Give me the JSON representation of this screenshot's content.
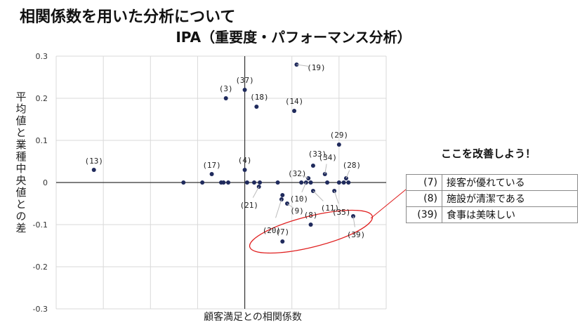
{
  "page_title": "相関係数を用いた分析について",
  "callout": {
    "heading": "ここを改善しよう！",
    "rows": [
      {
        "num": "(7)",
        "text": "接客が優れている"
      },
      {
        "num": "(8)",
        "text": "施設が清潔である"
      },
      {
        "num": "(39)",
        "text": "食事は美味しい"
      }
    ]
  },
  "chart_data": {
    "type": "scatter",
    "title": "IPA（重要度・パフォーマンス分析）",
    "xlabel": "顧客満足との相関係数",
    "ylabel": "平均値と業種中央値との差",
    "ylim": [
      -0.3,
      0.3
    ],
    "yticks": [
      "0.3",
      "0.2",
      "0.1",
      "0",
      "-0.1",
      "-0.2",
      "-0.3"
    ],
    "grid": true,
    "points": [
      {
        "label": "(13)",
        "x": 0.08,
        "y": 0.03
      },
      {
        "label": "",
        "x": 0.27,
        "y": 0.0
      },
      {
        "label": "",
        "x": 0.31,
        "y": 0.0
      },
      {
        "label": "(17)",
        "x": 0.33,
        "y": 0.02
      },
      {
        "label": "",
        "x": 0.35,
        "y": 0.0
      },
      {
        "label": "",
        "x": 0.355,
        "y": 0.0
      },
      {
        "label": "",
        "x": 0.365,
        "y": 0.0
      },
      {
        "label": "(3)",
        "x": 0.36,
        "y": 0.2
      },
      {
        "label": "(37)",
        "x": 0.4,
        "y": 0.22
      },
      {
        "label": "(4)",
        "x": 0.4,
        "y": 0.03
      },
      {
        "label": "",
        "x": 0.405,
        "y": 0.0
      },
      {
        "label": "(18)",
        "x": 0.425,
        "y": 0.18
      },
      {
        "label": "",
        "x": 0.42,
        "y": 0.0
      },
      {
        "label": "(21)",
        "x": 0.43,
        "y": -0.01
      },
      {
        "label": "",
        "x": 0.432,
        "y": 0.0
      },
      {
        "label": "",
        "x": 0.47,
        "y": 0.0
      },
      {
        "label": "(20)",
        "x": 0.478,
        "y": -0.04
      },
      {
        "label": "",
        "x": 0.48,
        "y": -0.03
      },
      {
        "label": "(9)",
        "x": 0.49,
        "y": -0.05
      },
      {
        "label": "(7)",
        "x": 0.48,
        "y": -0.14
      },
      {
        "label": "(19)",
        "x": 0.51,
        "y": 0.28
      },
      {
        "label": "(14)",
        "x": 0.505,
        "y": 0.17
      },
      {
        "label": "",
        "x": 0.52,
        "y": 0.0
      },
      {
        "label": "(10)",
        "x": 0.53,
        "y": 0.0
      },
      {
        "label": "(32)",
        "x": 0.535,
        "y": 0.01
      },
      {
        "label": "(33)",
        "x": 0.545,
        "y": 0.04
      },
      {
        "label": "(11)",
        "x": 0.545,
        "y": -0.02
      },
      {
        "label": "",
        "x": 0.54,
        "y": 0.0
      },
      {
        "label": "(8)",
        "x": 0.54,
        "y": -0.1
      },
      {
        "label": "(34)",
        "x": 0.57,
        "y": 0.02
      },
      {
        "label": "",
        "x": 0.575,
        "y": 0.0
      },
      {
        "label": "(35)",
        "x": 0.59,
        "y": -0.02
      },
      {
        "label": "(29)",
        "x": 0.6,
        "y": 0.09
      },
      {
        "label": "",
        "x": 0.6,
        "y": 0.0
      },
      {
        "label": "",
        "x": 0.61,
        "y": 0.0
      },
      {
        "label": "(28)",
        "x": 0.615,
        "y": 0.01
      },
      {
        "label": "",
        "x": 0.62,
        "y": 0.0
      },
      {
        "label": "(39)",
        "x": 0.63,
        "y": -0.08
      }
    ]
  }
}
